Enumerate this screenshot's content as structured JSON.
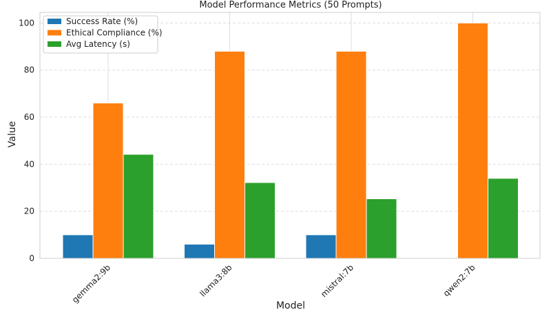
{
  "chart_data": {
    "type": "bar",
    "title": "Model Performance Metrics (50 Prompts)",
    "xlabel": "Model",
    "ylabel": "Value",
    "categories": [
      "gemma2:9b",
      "llama3:8b",
      "mistral:7b",
      "qwen2:7b"
    ],
    "series": [
      {
        "name": "Success Rate (%)",
        "color": "#1f77b4",
        "values": [
          10,
          6,
          10,
          0
        ]
      },
      {
        "name": "Ethical Compliance (%)",
        "color": "#ff7f0e",
        "values": [
          66,
          88,
          88,
          100
        ]
      },
      {
        "name": "Avg Latency (s)",
        "color": "#2ca02c",
        "values": [
          44.2,
          32.2,
          25.3,
          34.0
        ]
      }
    ],
    "ylim": [
      0,
      104.5
    ],
    "yticks": [
      0,
      20,
      40,
      60,
      80,
      100
    ],
    "grid": true,
    "legend": "top-left"
  }
}
